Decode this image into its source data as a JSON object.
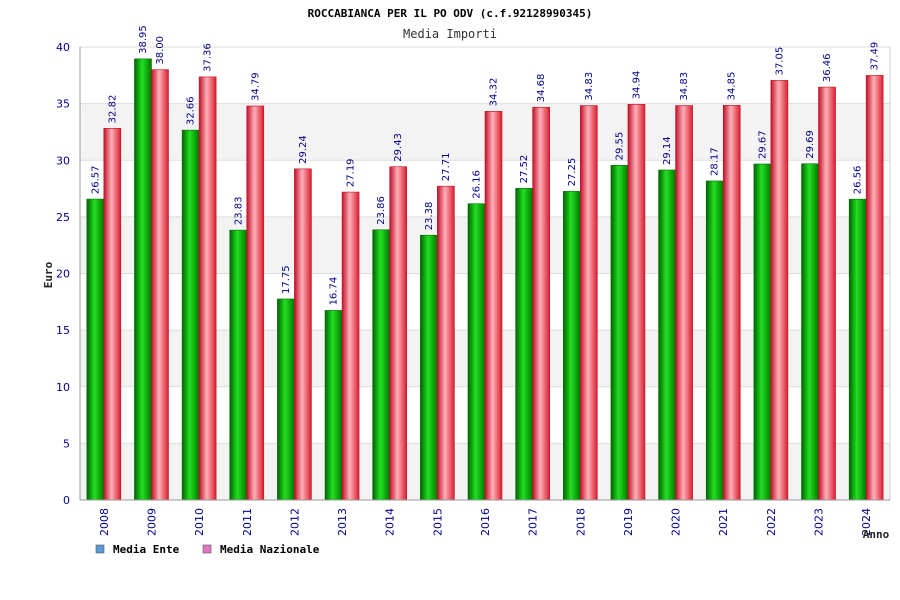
{
  "chart_data": {
    "type": "bar",
    "title": "ROCCABIANCA PER IL PO ODV (c.f.92128990345)",
    "subtitle": "Media Importi",
    "xlabel": "Anno",
    "ylabel": "Euro",
    "ylim": [
      0,
      40
    ],
    "yticks": [
      0,
      5,
      10,
      15,
      20,
      25,
      30,
      35,
      40
    ],
    "grid": true,
    "legend_position": "bottom-left",
    "categories": [
      "2008",
      "2009",
      "2010",
      "2011",
      "2012",
      "2013",
      "2014",
      "2015",
      "2016",
      "2017",
      "2018",
      "2019",
      "2020",
      "2021",
      "2022",
      "2023",
      "2024"
    ],
    "series": [
      {
        "name": "Media Ente",
        "legend_color": "#5b9bd5",
        "bar_color": "#00a000",
        "values": [
          26.57,
          38.95,
          32.66,
          23.83,
          17.75,
          16.74,
          23.86,
          23.38,
          26.16,
          27.52,
          27.25,
          29.55,
          29.14,
          28.17,
          29.67,
          29.69,
          26.56
        ],
        "labels": [
          "26.57",
          "38.95",
          "32.66",
          "23.83",
          "17.75",
          "16.74",
          "23.86",
          "23.38",
          "26.16",
          "27.52",
          "27.25",
          "29.55",
          "29.14",
          "28.17",
          "29.67",
          "29.69",
          "26.56"
        ]
      },
      {
        "name": "Media Nazionale",
        "legend_color": "#e377c2",
        "bar_color": "#e8303c",
        "values": [
          32.82,
          38.0,
          37.36,
          34.79,
          29.24,
          27.19,
          29.43,
          27.71,
          34.32,
          34.68,
          34.83,
          34.94,
          34.83,
          34.85,
          37.05,
          36.46,
          37.49
        ],
        "labels": [
          "32.82",
          "38.00",
          "37.36",
          "34.79",
          "29.24",
          "27.19",
          "29.43",
          "27.71",
          "34.32",
          "34.68",
          "34.83",
          "34.94",
          "34.83",
          "34.85",
          "37.05",
          "36.46",
          "37.49"
        ]
      }
    ]
  }
}
